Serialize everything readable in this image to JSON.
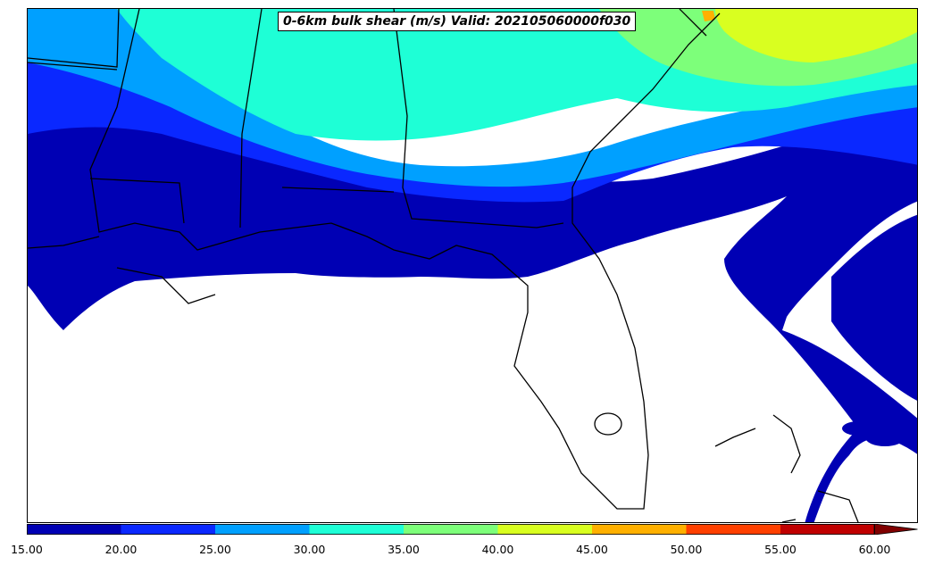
{
  "title": "0-6km bulk shear (m/s) Valid: 202105060000f030",
  "colorbar": {
    "bins": [
      {
        "lo": 15,
        "hi": 20,
        "color": "#0000b4"
      },
      {
        "lo": 20,
        "hi": 25,
        "color": "#0a28ff"
      },
      {
        "lo": 25,
        "hi": 30,
        "color": "#00a0ff"
      },
      {
        "lo": 30,
        "hi": 35,
        "color": "#1effd6"
      },
      {
        "lo": 35,
        "hi": 40,
        "color": "#7dff7a"
      },
      {
        "lo": 40,
        "hi": 45,
        "color": "#d9ff20"
      },
      {
        "lo": 45,
        "hi": 50,
        "color": "#ffb000"
      },
      {
        "lo": 50,
        "hi": 55,
        "color": "#ff4000"
      },
      {
        "lo": 55,
        "hi": 60,
        "color": "#c00000"
      },
      {
        "lo": 60,
        "hi": null,
        "color": "#800000"
      }
    ],
    "tick_labels": [
      "15.00",
      "20.00",
      "25.00",
      "30.00",
      "35.00",
      "40.00",
      "45.00",
      "50.00",
      "55.00",
      "60.00"
    ],
    "extend": "max"
  }
}
